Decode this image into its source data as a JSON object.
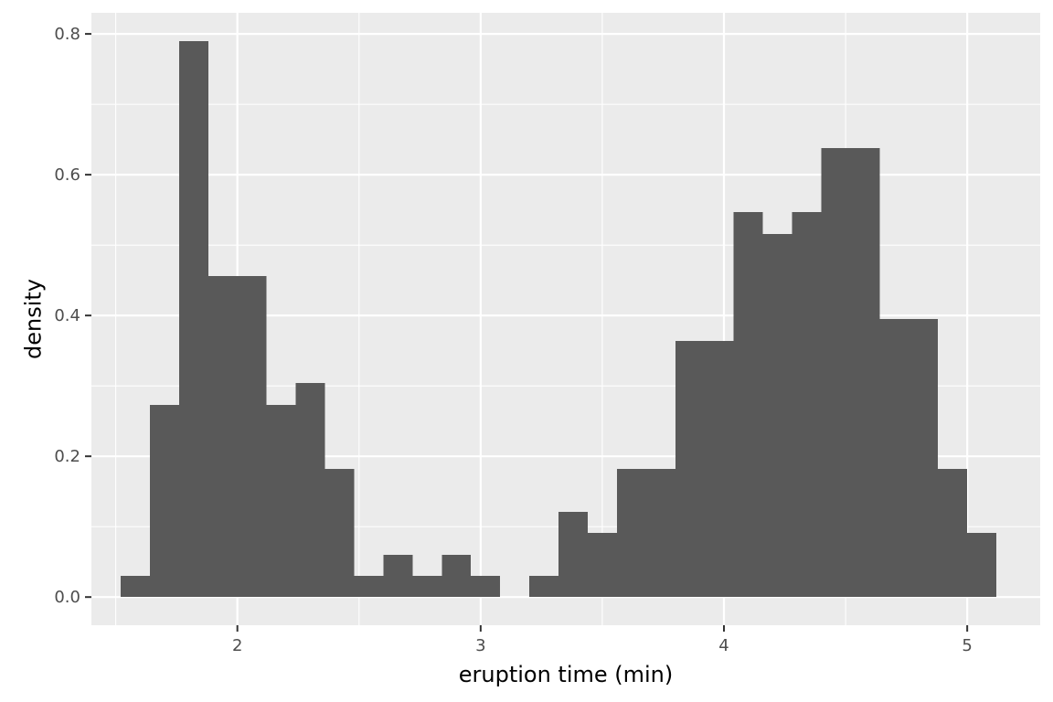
{
  "chart_data": {
    "type": "bar",
    "subtype": "histogram",
    "xlabel": "eruption time (min)",
    "ylabel": "density",
    "xlim": [
      1.4,
      5.3
    ],
    "ylim": [
      -0.04,
      0.83
    ],
    "x_ticks": [
      2,
      3,
      4,
      5
    ],
    "y_ticks": [
      0.0,
      0.2,
      0.4,
      0.6,
      0.8
    ],
    "x_tick_labels": [
      "2",
      "3",
      "4",
      "5"
    ],
    "y_tick_labels": [
      "0.0",
      "0.2",
      "0.4",
      "0.6",
      "0.8"
    ],
    "grid": true,
    "bar_color": "#595959",
    "panel_color": "#ebebeb",
    "grid_color": "#ffffff",
    "bins": [
      {
        "x_start": 1.52,
        "x_end": 1.64,
        "density": 0.03
      },
      {
        "x_start": 1.64,
        "x_end": 1.76,
        "density": 0.273
      },
      {
        "x_start": 1.76,
        "x_end": 1.88,
        "density": 0.79
      },
      {
        "x_start": 1.88,
        "x_end": 2.0,
        "density": 0.456
      },
      {
        "x_start": 2.0,
        "x_end": 2.12,
        "density": 0.456
      },
      {
        "x_start": 2.12,
        "x_end": 2.24,
        "density": 0.273
      },
      {
        "x_start": 2.24,
        "x_end": 2.36,
        "density": 0.304
      },
      {
        "x_start": 2.36,
        "x_end": 2.48,
        "density": 0.182
      },
      {
        "x_start": 2.48,
        "x_end": 2.6,
        "density": 0.03
      },
      {
        "x_start": 2.6,
        "x_end": 2.72,
        "density": 0.06
      },
      {
        "x_start": 2.72,
        "x_end": 2.84,
        "density": 0.03
      },
      {
        "x_start": 2.84,
        "x_end": 2.96,
        "density": 0.06
      },
      {
        "x_start": 2.96,
        "x_end": 3.08,
        "density": 0.03
      },
      {
        "x_start": 3.08,
        "x_end": 3.2,
        "density": 0.0
      },
      {
        "x_start": 3.2,
        "x_end": 3.32,
        "density": 0.03
      },
      {
        "x_start": 3.32,
        "x_end": 3.44,
        "density": 0.121
      },
      {
        "x_start": 3.44,
        "x_end": 3.56,
        "density": 0.091
      },
      {
        "x_start": 3.56,
        "x_end": 3.68,
        "density": 0.182
      },
      {
        "x_start": 3.68,
        "x_end": 3.8,
        "density": 0.182
      },
      {
        "x_start": 3.8,
        "x_end": 3.92,
        "density": 0.364
      },
      {
        "x_start": 3.92,
        "x_end": 4.04,
        "density": 0.364
      },
      {
        "x_start": 4.04,
        "x_end": 4.16,
        "density": 0.547
      },
      {
        "x_start": 4.16,
        "x_end": 4.28,
        "density": 0.516
      },
      {
        "x_start": 4.28,
        "x_end": 4.4,
        "density": 0.547
      },
      {
        "x_start": 4.4,
        "x_end": 4.52,
        "density": 0.638
      },
      {
        "x_start": 4.52,
        "x_end": 4.64,
        "density": 0.638
      },
      {
        "x_start": 4.64,
        "x_end": 4.76,
        "density": 0.395
      },
      {
        "x_start": 4.76,
        "x_end": 4.88,
        "density": 0.395
      },
      {
        "x_start": 4.88,
        "x_end": 5.0,
        "density": 0.182
      },
      {
        "x_start": 5.0,
        "x_end": 5.12,
        "density": 0.091
      }
    ]
  }
}
